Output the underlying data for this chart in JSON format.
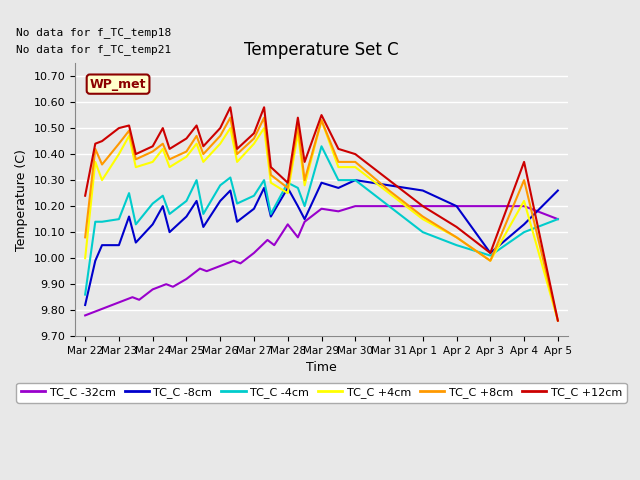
{
  "title": "Temperature Set C",
  "xlabel": "Time",
  "ylabel": "Temperature (C)",
  "note1": "No data for f_TC_temp18",
  "note2": "No data for f_TC_temp21",
  "wp_met_label": "WP_met",
  "ylim": [
    9.7,
    10.75
  ],
  "yticks": [
    9.7,
    9.8,
    9.9,
    10.0,
    10.1,
    10.2,
    10.3,
    10.4,
    10.5,
    10.6,
    10.7
  ],
  "xtick_labels": [
    "Mar 22",
    "Mar 23",
    "Mar 24",
    "Mar 25",
    "Mar 26",
    "Mar 27",
    "Mar 28",
    "Mar 29",
    "Mar 30",
    "Mar 31",
    "Apr 1",
    "Apr 2",
    "Apr 3",
    "Apr 4",
    "Apr 5"
  ],
  "bg_color": "#e8e8e8",
  "grid_color": "#ffffff",
  "fig_bg_color": "#e8e8e8",
  "legend_series": [
    "TC_C -32cm",
    "TC_C -8cm",
    "TC_C -4cm",
    "TC_C +4cm",
    "TC_C +8cm",
    "TC_C +12cm"
  ],
  "colors": {
    "TC_C -32cm": "#9900cc",
    "TC_C -8cm": "#0000cc",
    "TC_C -4cm": "#00cccc",
    "TC_C +4cm": "#ffff00",
    "TC_C +8cm": "#ff9900",
    "TC_C +12cm": "#cc0000"
  },
  "series": {
    "TC_C -32cm": {
      "x": [
        0,
        0.4,
        0.6,
        1.0,
        1.4,
        1.6,
        2.0,
        2.4,
        2.6,
        3.0,
        3.4,
        3.6,
        4.0,
        4.4,
        4.6,
        5.0,
        5.4,
        5.6,
        6.0,
        6.3,
        6.5,
        6.7,
        7.0,
        7.5,
        8.0,
        9.0,
        10.0,
        11.0,
        12.0,
        13.0,
        14.0
      ],
      "y": [
        9.78,
        9.8,
        9.81,
        9.83,
        9.85,
        9.84,
        9.88,
        9.9,
        9.89,
        9.92,
        9.96,
        9.95,
        9.97,
        9.99,
        9.98,
        10.02,
        10.07,
        10.05,
        10.13,
        10.08,
        10.14,
        10.16,
        10.19,
        10.18,
        10.2,
        10.2,
        10.2,
        10.2,
        10.2,
        10.2,
        10.15
      ]
    },
    "TC_C -8cm": {
      "x": [
        0,
        0.3,
        0.5,
        1.0,
        1.3,
        1.5,
        2.0,
        2.3,
        2.5,
        3.0,
        3.3,
        3.5,
        4.0,
        4.3,
        4.5,
        5.0,
        5.3,
        5.5,
        6.0,
        6.3,
        6.5,
        7.0,
        7.5,
        8.0,
        9.0,
        10.0,
        11.0,
        12.0,
        13.0,
        14.0
      ],
      "y": [
        9.82,
        9.99,
        10.05,
        10.05,
        10.16,
        10.06,
        10.13,
        10.2,
        10.1,
        10.16,
        10.22,
        10.12,
        10.22,
        10.26,
        10.14,
        10.19,
        10.27,
        10.16,
        10.27,
        10.2,
        10.15,
        10.29,
        10.27,
        10.3,
        10.28,
        10.26,
        10.2,
        10.02,
        10.13,
        10.26
      ]
    },
    "TC_C -4cm": {
      "x": [
        0,
        0.3,
        0.5,
        1.0,
        1.3,
        1.5,
        2.0,
        2.3,
        2.5,
        3.0,
        3.3,
        3.5,
        4.0,
        4.3,
        4.5,
        5.0,
        5.3,
        5.5,
        6.0,
        6.3,
        6.5,
        7.0,
        7.5,
        8.0,
        9.0,
        10.0,
        11.0,
        12.0,
        13.0,
        14.0
      ],
      "y": [
        9.86,
        10.14,
        10.14,
        10.15,
        10.25,
        10.13,
        10.21,
        10.24,
        10.17,
        10.22,
        10.3,
        10.17,
        10.28,
        10.31,
        10.21,
        10.24,
        10.3,
        10.17,
        10.29,
        10.27,
        10.2,
        10.43,
        10.3,
        10.3,
        10.2,
        10.1,
        10.05,
        10.01,
        10.1,
        10.15
      ]
    },
    "TC_C +4cm": {
      "x": [
        0,
        0.3,
        0.5,
        1.0,
        1.3,
        1.5,
        2.0,
        2.3,
        2.5,
        3.0,
        3.3,
        3.5,
        4.0,
        4.3,
        4.5,
        5.0,
        5.3,
        5.5,
        6.0,
        6.3,
        6.5,
        7.0,
        7.5,
        8.0,
        9.0,
        10.0,
        11.0,
        12.0,
        13.0,
        14.0
      ],
      "y": [
        10.0,
        10.37,
        10.3,
        10.4,
        10.47,
        10.35,
        10.37,
        10.42,
        10.35,
        10.39,
        10.44,
        10.37,
        10.44,
        10.5,
        10.37,
        10.44,
        10.5,
        10.29,
        10.25,
        10.48,
        10.28,
        10.53,
        10.35,
        10.35,
        10.25,
        10.15,
        10.08,
        9.99,
        10.22,
        9.76
      ]
    },
    "TC_C +8cm": {
      "x": [
        0,
        0.3,
        0.5,
        1.0,
        1.3,
        1.5,
        2.0,
        2.3,
        2.5,
        3.0,
        3.3,
        3.5,
        4.0,
        4.3,
        4.5,
        5.0,
        5.3,
        5.5,
        6.0,
        6.3,
        6.5,
        7.0,
        7.5,
        8.0,
        9.0,
        10.0,
        11.0,
        12.0,
        13.0,
        14.0
      ],
      "y": [
        10.08,
        10.42,
        10.36,
        10.44,
        10.49,
        10.38,
        10.41,
        10.44,
        10.38,
        10.41,
        10.47,
        10.4,
        10.47,
        10.54,
        10.4,
        10.46,
        10.54,
        10.32,
        10.27,
        10.51,
        10.3,
        10.53,
        10.37,
        10.37,
        10.26,
        10.16,
        10.08,
        9.99,
        10.3,
        9.76
      ]
    },
    "TC_C +12cm": {
      "x": [
        0,
        0.3,
        0.5,
        1.0,
        1.3,
        1.5,
        2.0,
        2.3,
        2.5,
        3.0,
        3.3,
        3.5,
        4.0,
        4.3,
        4.5,
        5.0,
        5.3,
        5.5,
        6.0,
        6.3,
        6.5,
        7.0,
        7.5,
        8.0,
        9.0,
        10.0,
        11.0,
        12.0,
        13.0,
        14.0
      ],
      "y": [
        10.24,
        10.44,
        10.45,
        10.5,
        10.51,
        10.4,
        10.43,
        10.5,
        10.42,
        10.46,
        10.51,
        10.43,
        10.5,
        10.58,
        10.42,
        10.48,
        10.58,
        10.35,
        10.29,
        10.54,
        10.37,
        10.55,
        10.42,
        10.4,
        10.3,
        10.2,
        10.12,
        10.02,
        10.37,
        9.76
      ]
    }
  }
}
